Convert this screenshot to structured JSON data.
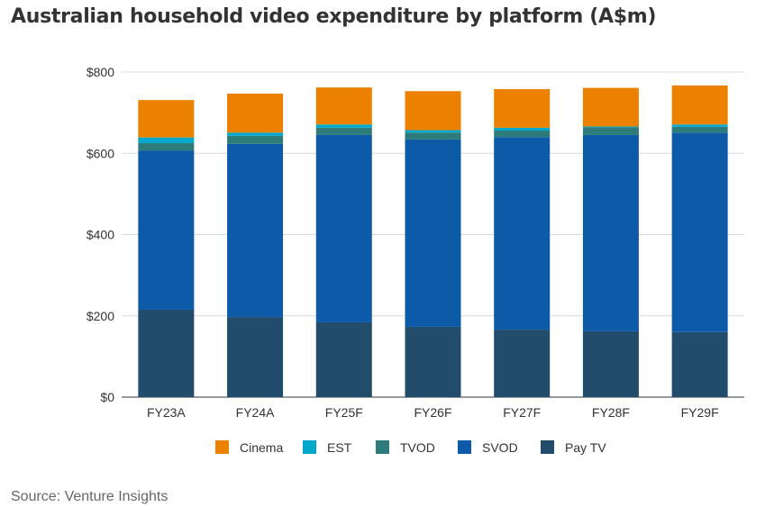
{
  "chart_data": {
    "type": "bar",
    "stacked": true,
    "title": "Australian household video expenditure by platform (A$m)",
    "source": "Source: Venture Insights",
    "categories": [
      "FY23A",
      "FY24A",
      "FY25F",
      "FY26F",
      "FY27F",
      "FY28F",
      "FY29F"
    ],
    "ylim": [
      0,
      800
    ],
    "yticks": [
      0,
      200,
      400,
      600,
      800
    ],
    "ytick_labels": [
      "$0",
      "$200",
      "$400",
      "$600",
      "$800"
    ],
    "grid": true,
    "legend_position": "bottom",
    "series": [
      {
        "name": "Pay TV",
        "color": "#224C6C",
        "values": [
          215,
          197,
          184,
          173,
          166,
          162,
          160
        ]
      },
      {
        "name": "SVOD",
        "color": "#0D5BA8",
        "values": [
          392,
          426,
          461,
          461,
          474,
          483,
          491
        ]
      },
      {
        "name": "TVOD",
        "color": "#2E7B7B",
        "values": [
          18,
          20,
          18,
          17,
          16,
          19,
          14
        ]
      },
      {
        "name": "EST",
        "color": "#00A9CB",
        "values": [
          14,
          8,
          8,
          6,
          7,
          2,
          6
        ]
      },
      {
        "name": "Cinema",
        "color": "#EC8100",
        "values": [
          92,
          96,
          91,
          96,
          95,
          95,
          96
        ]
      }
    ],
    "legend_order": [
      "Cinema",
      "EST",
      "TVOD",
      "SVOD",
      "Pay TV"
    ]
  }
}
